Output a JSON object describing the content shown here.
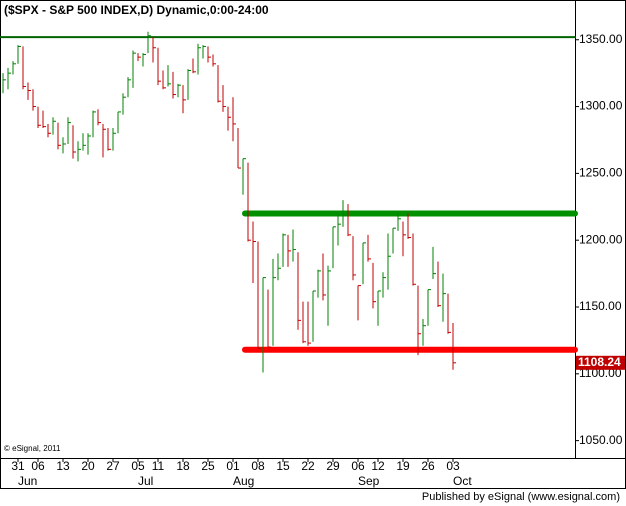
{
  "chart_data": {
    "type": "hlc",
    "title": "($SPX - S&P 500 INDEX,D) Dynamic,0:00-24:00",
    "copyright": "© eSignal, 2011",
    "footer": "Published by eSignal (www.esignal.com)",
    "up_color": "#008000",
    "down_color": "#c00000",
    "categories": [
      null,
      null,
      null,
      "31",
      null,
      null,
      null,
      "06",
      null,
      null,
      null,
      null,
      "13",
      null,
      null,
      null,
      null,
      "20",
      null,
      null,
      null,
      null,
      "27",
      null,
      null,
      null,
      null,
      "05",
      null,
      null,
      null,
      "11",
      null,
      null,
      null,
      null,
      "18",
      null,
      null,
      null,
      null,
      "25",
      null,
      null,
      null,
      null,
      "01",
      null,
      null,
      null,
      null,
      "08",
      null,
      null,
      null,
      null,
      "15",
      null,
      null,
      null,
      null,
      "22",
      null,
      null,
      null,
      null,
      "29",
      null,
      null,
      null,
      null,
      "06",
      null,
      null,
      null,
      "12",
      null,
      null,
      null,
      null,
      "19",
      null,
      null,
      null,
      null,
      "26",
      null,
      null,
      null,
      null,
      "03"
    ],
    "months": [
      null,
      null,
      null,
      "Jun",
      null,
      null,
      null,
      null,
      null,
      null,
      null,
      null,
      null,
      null,
      null,
      null,
      null,
      null,
      null,
      null,
      null,
      null,
      null,
      null,
      null,
      null,
      null,
      "Jul",
      null,
      null,
      null,
      null,
      null,
      null,
      null,
      null,
      null,
      null,
      null,
      null,
      null,
      null,
      null,
      null,
      null,
      null,
      "Aug",
      null,
      null,
      null,
      null,
      null,
      null,
      null,
      null,
      null,
      null,
      null,
      null,
      null,
      null,
      null,
      null,
      null,
      null,
      null,
      null,
      null,
      null,
      null,
      null,
      "Sep",
      null,
      null,
      null,
      null,
      null,
      null,
      null,
      null,
      null,
      null,
      null,
      null,
      null,
      null,
      null,
      null,
      null,
      null,
      "Oct"
    ],
    "high": [
      1325,
      1329,
      1334,
      1346,
      1345,
      1318,
      1313,
      1300,
      1297,
      1287,
      1292,
      1288,
      1277,
      1292,
      1286,
      1274,
      1280,
      1280,
      1297,
      1298,
      1287,
      1284,
      1284,
      1296,
      1310,
      1322,
      1342,
      1340,
      1340,
      1356,
      1352,
      1344,
      1327,
      1331,
      1326,
      1317,
      1316,
      1328,
      1336,
      1347,
      1346,
      1345,
      1339,
      1331,
      1316,
      1300,
      1307,
      1284,
      1261,
      1258,
      1214,
      1199,
      1172,
      1163,
      1186,
      1190,
      1205,
      1204,
      1208,
      1191,
      1154,
      1154,
      1162,
      1178,
      1190,
      1181,
      1210,
      1220,
      1230,
      1227,
      1203,
      1166,
      1198,
      1204,
      1183,
      1162,
      1176,
      1205,
      1209,
      1220,
      1214,
      1220,
      1205,
      1166,
      1141,
      1163,
      1195,
      1184,
      1175,
      1160,
      1138
    ],
    "low": [
      1310,
      1313,
      1324,
      1332,
      1313,
      1305,
      1297,
      1284,
      1284,
      1277,
      1279,
      1268,
      1265,
      1272,
      1261,
      1259,
      1267,
      1264,
      1277,
      1286,
      1262,
      1267,
      1267,
      1280,
      1294,
      1307,
      1314,
      1334,
      1330,
      1340,
      1333,
      1316,
      1313,
      1315,
      1306,
      1307,
      1295,
      1305,
      1325,
      1324,
      1336,
      1333,
      1330,
      1303,
      1296,
      1282,
      1274,
      1254,
      1234,
      1199,
      1168,
      1119,
      1101,
      1120,
      1121,
      1170,
      1180,
      1180,
      1184,
      1133,
      1123,
      1121,
      1124,
      1157,
      1155,
      1136,
      1179,
      1196,
      1210,
      1203,
      1170,
      1140,
      1167,
      1184,
      1149,
      1136,
      1157,
      1163,
      1190,
      1207,
      1188,
      1201,
      1166,
      1114,
      1121,
      1136,
      1171,
      1150,
      1139,
      1130,
      1103
    ],
    "close": [
      1320,
      1325,
      1332,
      1345,
      1315,
      1312,
      1300,
      1286,
      1285,
      1280,
      1289,
      1271,
      1272,
      1288,
      1266,
      1268,
      1271,
      1278,
      1296,
      1288,
      1283,
      1268,
      1280,
      1296,
      1307,
      1320,
      1340,
      1337,
      1339,
      1353,
      1344,
      1319,
      1314,
      1317,
      1309,
      1316,
      1305,
      1327,
      1326,
      1344,
      1345,
      1337,
      1332,
      1304,
      1300,
      1292,
      1287,
      1254,
      1261,
      1200,
      1199,
      1119,
      1172,
      1120,
      1172,
      1179,
      1204,
      1192,
      1193,
      1140,
      1124,
      1123,
      1162,
      1177,
      1159,
      1177,
      1210,
      1212,
      1219,
      1204,
      1174,
      1166,
      1198,
      1186,
      1154,
      1162,
      1172,
      1188,
      1209,
      1216,
      1204,
      1202,
      1167,
      1130,
      1136,
      1163,
      1175,
      1151,
      1160,
      1131,
      1108.24
    ],
    "last_price": 1108.24,
    "levels": [
      {
        "value": 1352,
        "color": "#006400",
        "start": 0,
        "width": 2
      },
      {
        "value": 1220,
        "color": "#009000",
        "start": 49,
        "width": 6
      },
      {
        "value": 1118,
        "color": "#ff0000",
        "start": 49,
        "width": 6
      }
    ],
    "ylim": [
      1037,
      1379
    ],
    "yticks": [
      {
        "value": 1050,
        "label": "1050.00"
      },
      {
        "value": 1100,
        "label": "1100.00"
      },
      {
        "value": 1150,
        "label": "1150.00"
      },
      {
        "value": 1200,
        "label": "1200.00"
      },
      {
        "value": 1250,
        "label": "1250.00"
      },
      {
        "value": 1300,
        "label": "1300.00"
      },
      {
        "value": 1350,
        "label": "1350.00"
      }
    ]
  }
}
